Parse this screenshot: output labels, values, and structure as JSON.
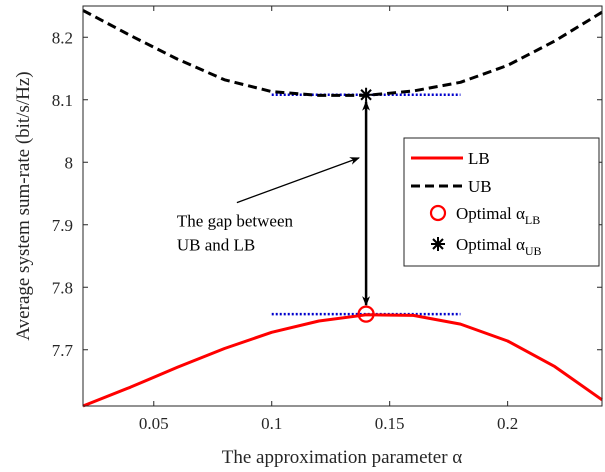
{
  "chart_data": {
    "type": "line",
    "title": "",
    "xlabel": "The approximation parameter α",
    "ylabel": "Average system sum-rate (bit/s/Hz)",
    "xlim": [
      0.02,
      0.24
    ],
    "ylim": [
      7.61,
      8.25
    ],
    "x_ticks": [
      0.05,
      0.1,
      0.15,
      0.2
    ],
    "x_tick_labels": [
      "0.05",
      "0.1",
      "0.15",
      "0.2"
    ],
    "y_ticks": [
      7.7,
      7.8,
      7.9,
      8.0,
      8.1,
      8.2
    ],
    "y_tick_labels": [
      "7.7",
      "7.8",
      "7.9",
      "8",
      "8.1",
      "8.2"
    ],
    "grid": false,
    "legend_position": "right",
    "series": [
      {
        "name": "LB",
        "color": "#ff0000",
        "line_style": "solid",
        "x": [
          0.02,
          0.04,
          0.06,
          0.08,
          0.1,
          0.12,
          0.14,
          0.16,
          0.18,
          0.2,
          0.22,
          0.24
        ],
        "y": [
          7.61,
          7.64,
          7.672,
          7.702,
          7.728,
          7.746,
          7.756,
          7.755,
          7.741,
          7.714,
          7.673,
          7.62
        ]
      },
      {
        "name": "UB",
        "color": "#000000",
        "line_style": "dashed",
        "x": [
          0.02,
          0.04,
          0.06,
          0.08,
          0.1,
          0.12,
          0.14,
          0.16,
          0.18,
          0.2,
          0.22,
          0.24
        ],
        "y": [
          8.243,
          8.203,
          8.165,
          8.132,
          8.113,
          8.107,
          8.107,
          8.114,
          8.128,
          8.155,
          8.194,
          8.24
        ]
      }
    ],
    "markers": [
      {
        "name": "Optimal α_LB",
        "legend_main": "Optimal α",
        "legend_sub": "LB",
        "shape": "circle",
        "color": "#ff0000",
        "x": 0.14,
        "y": 7.757
      },
      {
        "name": "Optimal α_UB",
        "legend_main": "Optimal α",
        "legend_sub": "UB",
        "shape": "asterisk",
        "color": "#000000",
        "x": 0.14,
        "y": 8.108
      }
    ],
    "reference_lines": [
      {
        "color": "#0000cc",
        "style": "dotted",
        "x_from": 0.1,
        "x_to": 0.18,
        "y": 8.108
      },
      {
        "color": "#0000cc",
        "style": "dotted",
        "x_from": 0.1,
        "x_to": 0.18,
        "y": 7.757
      }
    ],
    "annotation": {
      "lines": [
        "The gap between",
        "UB and LB"
      ],
      "text_x": 0.0598,
      "text_y_top": 7.897,
      "arrow_to": [
        0.137,
        8.007
      ]
    }
  }
}
